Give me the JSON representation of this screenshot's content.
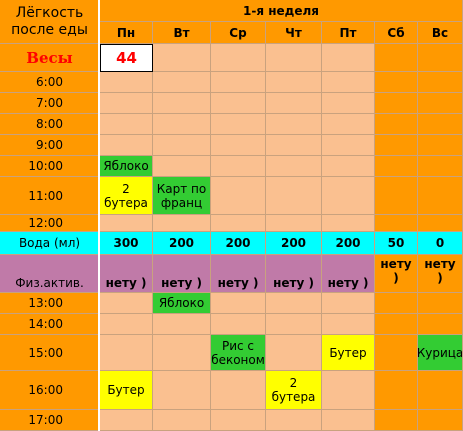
{
  "sheet": {
    "title_label": "Лёгкость после еды",
    "week_label": "1-я неделя",
    "days": [
      "Пн",
      "Вт",
      "Ср",
      "Чт",
      "Пт",
      "Сб",
      "Вс"
    ],
    "weight_label": "Весы",
    "weight_value": "44",
    "times": {
      "t0600": "6:00",
      "t0700": "7:00",
      "t0800": "8:00",
      "t0900": "9:00",
      "t1000": "10:00",
      "t1100": "11:00",
      "t1200": "12:00",
      "t1300": "13:00",
      "t1400": "14:00",
      "t1500": "15:00",
      "t1600": "16:00",
      "t1700": "17:00"
    },
    "meals": {
      "mon_1000": "Яблоко",
      "mon_1100": "2 бутера",
      "tue_1100": "Карт по франц",
      "tue_1300": "Яблоко",
      "wed_1500": "Рис с беконом",
      "fri_1500": "Бутер",
      "sun_1500": "Курица",
      "mon_1600": "Бутер",
      "thu_1600": "2 бутера"
    },
    "water_label": "Вода (мл)",
    "water": [
      "300",
      "200",
      "200",
      "200",
      "200",
      "50",
      "0"
    ],
    "activity_label": "Физ.актив.",
    "activity": [
      "нету )",
      "нету )",
      "нету )",
      "нету )",
      "нету )",
      "нету )",
      "нету )"
    ],
    "colors": {
      "header_orange": "#ff9900",
      "cell_peach": "#fac090",
      "water_cyan": "#00ffff",
      "activity_mauve": "#c07aa8",
      "meal_green": "#33cc33",
      "meal_yellow": "#ffff00",
      "weight_red": "#ff0000"
    }
  }
}
